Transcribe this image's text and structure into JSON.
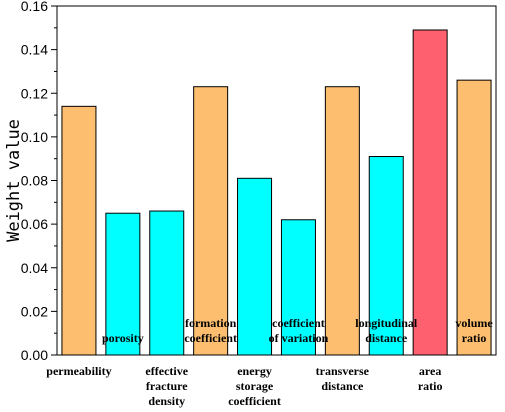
{
  "chart_data": {
    "type": "bar",
    "title": "",
    "xlabel": "",
    "ylabel": "Weight value",
    "ylim": [
      0,
      0.16
    ],
    "yticks": [
      "0.00",
      "0.02",
      "0.04",
      "0.06",
      "0.08",
      "0.10",
      "0.12",
      "0.14",
      "0.16"
    ],
    "categories": [
      {
        "lines": [
          "permeability"
        ],
        "position": "below"
      },
      {
        "lines": [
          "porosity"
        ],
        "position": "inside"
      },
      {
        "lines": [
          "effective",
          "fracture",
          "density"
        ],
        "position": "below"
      },
      {
        "lines": [
          "formation",
          "coefficient"
        ],
        "position": "inside"
      },
      {
        "lines": [
          "energy",
          "storage",
          "coefficient"
        ],
        "position": "below"
      },
      {
        "lines": [
          "coefficient",
          "of variation"
        ],
        "position": "inside"
      },
      {
        "lines": [
          "transverse",
          "distance"
        ],
        "position": "below"
      },
      {
        "lines": [
          "longitudinal",
          "distance"
        ],
        "position": "inside"
      },
      {
        "lines": [
          "area",
          "ratio"
        ],
        "position": "below"
      },
      {
        "lines": [
          "volume",
          "ratio"
        ],
        "position": "inside"
      }
    ],
    "values": [
      0.114,
      0.065,
      0.066,
      0.123,
      0.081,
      0.062,
      0.123,
      0.091,
      0.149,
      0.126
    ],
    "bar_colors": [
      "#FDBF6F",
      "#00FFFF",
      "#00FFFF",
      "#FDBF6F",
      "#00FFFF",
      "#00FFFF",
      "#FDBF6F",
      "#00FFFF",
      "#FF6070",
      "#FDBF6F"
    ],
    "grid": false,
    "legend": "none"
  }
}
